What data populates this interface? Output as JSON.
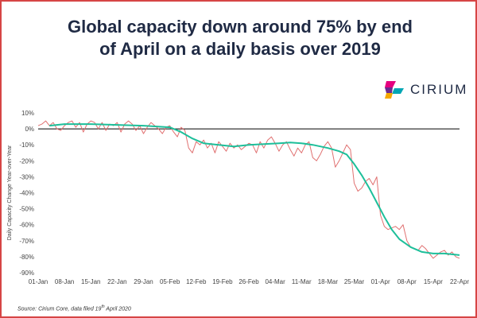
{
  "header": {
    "title_line1": "Global capacity down around 75% by end",
    "title_line2": "of April on a daily basis over 2019"
  },
  "logo": {
    "word": "CIRIUM",
    "colors": [
      "#e5007e",
      "#00a6b4",
      "#f5a800",
      "#6a2c91"
    ]
  },
  "footer": {
    "source_prefix": "Source: Cirium Core, data filed 19",
    "source_sup": "th",
    "source_suffix": " April 2020"
  },
  "colors": {
    "daily": "#e07070",
    "trend": "#1dbf9a",
    "zero": "#000000",
    "grid": "#d9d9d9",
    "text": "#444444"
  },
  "chart_data": {
    "type": "line",
    "title": "Global capacity down around 75% by end of April on a daily basis over 2019",
    "xlabel": "",
    "ylabel": "Daily Capacity Change Year-over-Year",
    "x_range": [
      0,
      112
    ],
    "ylim": [
      -90,
      10
    ],
    "y_ticks": [
      10,
      0,
      -10,
      -20,
      -30,
      -40,
      -50,
      -60,
      -70,
      -80,
      -90
    ],
    "y_tick_labels": [
      "10%",
      "0%",
      "-10%",
      "-20%",
      "-30%",
      "-40%",
      "-50%",
      "-60%",
      "-70%",
      "-80%",
      "-90%"
    ],
    "x_ticks": [
      0,
      7,
      14,
      21,
      28,
      35,
      42,
      49,
      56,
      63,
      70,
      77,
      84,
      91,
      98,
      105,
      112
    ],
    "x_tick_labels": [
      "01-Jan",
      "08-Jan",
      "15-Jan",
      "22-Jan",
      "29-Jan",
      "05-Feb",
      "12-Feb",
      "19-Feb",
      "26-Feb",
      "04-Mar",
      "11-Mar",
      "18-Mar",
      "25-Mar",
      "01-Apr",
      "08-Apr",
      "15-Apr",
      "22-Apr"
    ],
    "series": [
      {
        "name": "Daily change",
        "x": [
          0,
          1,
          2,
          3,
          4,
          5,
          6,
          7,
          8,
          9,
          10,
          11,
          12,
          13,
          14,
          15,
          16,
          17,
          18,
          19,
          20,
          21,
          22,
          23,
          24,
          25,
          26,
          27,
          28,
          29,
          30,
          31,
          32,
          33,
          34,
          35,
          36,
          37,
          38,
          39,
          40,
          41,
          42,
          43,
          44,
          45,
          46,
          47,
          48,
          49,
          50,
          51,
          52,
          53,
          54,
          55,
          56,
          57,
          58,
          59,
          60,
          61,
          62,
          63,
          64,
          65,
          66,
          67,
          68,
          69,
          70,
          71,
          72,
          73,
          74,
          75,
          76,
          77,
          78,
          79,
          80,
          81,
          82,
          83,
          84,
          85,
          86,
          87,
          88,
          89,
          90,
          91,
          92,
          93,
          94,
          95,
          96,
          97,
          98,
          99,
          100,
          101,
          102,
          103,
          104,
          105,
          106,
          107,
          108,
          109,
          110,
          111,
          112
        ],
        "y": [
          2,
          3,
          5,
          2,
          4,
          0,
          -1,
          2,
          4,
          5,
          1,
          4,
          -2,
          3,
          5,
          4,
          0,
          4,
          -1,
          3,
          2,
          4,
          -2,
          3,
          5,
          3,
          -1,
          2,
          -3,
          1,
          4,
          2,
          0,
          -3,
          1,
          2,
          -2,
          -5,
          1,
          -1,
          -12,
          -15,
          -8,
          -10,
          -7,
          -12,
          -9,
          -15,
          -8,
          -11,
          -14,
          -9,
          -12,
          -10,
          -13,
          -11,
          -9,
          -10,
          -15,
          -8,
          -12,
          -7,
          -5,
          -9,
          -14,
          -10,
          -8,
          -13,
          -17,
          -12,
          -15,
          -10,
          -8,
          -18,
          -20,
          -16,
          -11,
          -8,
          -12,
          -24,
          -20,
          -15,
          -10,
          -13,
          -34,
          -39,
          -37,
          -33,
          -31,
          -35,
          -30,
          -54,
          -61,
          -63,
          -62,
          -61,
          -63,
          -60,
          -70,
          -74,
          -75,
          -76,
          -73,
          -75,
          -78,
          -81,
          -79,
          -77,
          -76,
          -79,
          -77,
          -80,
          -81
        ]
      },
      {
        "name": "Trend",
        "x": [
          3,
          7,
          14,
          21,
          28,
          35,
          38,
          41,
          44,
          48,
          52,
          56,
          60,
          64,
          67,
          70,
          73,
          77,
          80,
          82,
          84,
          86,
          88,
          90,
          92,
          94,
          96,
          99,
          102,
          105,
          108,
          112
        ],
        "y": [
          2,
          3,
          3,
          2.5,
          2,
          1,
          -2,
          -6,
          -9,
          -10,
          -11,
          -10,
          -9.5,
          -9,
          -8.5,
          -9,
          -10,
          -12,
          -14,
          -16,
          -22,
          -29,
          -37,
          -46,
          -55,
          -63,
          -69,
          -74,
          -77,
          -78,
          -78,
          -79
        ]
      }
    ]
  }
}
